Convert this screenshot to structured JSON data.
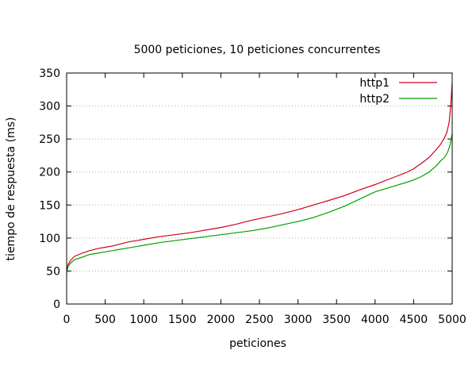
{
  "chart_data": {
    "type": "line",
    "title": "5000 peticiones, 10 peticiones concurrentes",
    "xlabel": "peticiones",
    "ylabel": "tiempo de respuesta (ms)",
    "xlim": [
      0,
      5000
    ],
    "ylim": [
      0,
      350
    ],
    "xticks": [
      0,
      500,
      1000,
      1500,
      2000,
      2500,
      3000,
      3500,
      4000,
      4500,
      5000
    ],
    "yticks": [
      0,
      50,
      100,
      150,
      200,
      250,
      300,
      350
    ],
    "grid": "horizontal-dotted",
    "legend_position": "top-right",
    "series": [
      {
        "name": "http1",
        "color": "#d0001a",
        "x": [
          0,
          20,
          50,
          100,
          200,
          300,
          400,
          500,
          600,
          700,
          800,
          900,
          1000,
          1200,
          1400,
          1600,
          1800,
          2000,
          2200,
          2400,
          2600,
          2800,
          3000,
          3200,
          3400,
          3600,
          3800,
          4000,
          4200,
          4400,
          4500,
          4600,
          4700,
          4800,
          4850,
          4900,
          4930,
          4960,
          4980,
          5000
        ],
        "values": [
          51,
          60,
          66,
          72,
          77,
          81,
          84,
          86,
          88,
          91,
          94,
          96,
          98,
          102,
          105,
          108,
          112,
          116,
          121,
          127,
          132,
          137,
          143,
          150,
          157,
          164,
          173,
          181,
          190,
          199,
          205,
          213,
          222,
          235,
          242,
          252,
          260,
          275,
          300,
          335
        ]
      },
      {
        "name": "http2",
        "color": "#00a000",
        "x": [
          0,
          20,
          50,
          100,
          200,
          300,
          400,
          500,
          600,
          700,
          800,
          900,
          1000,
          1200,
          1400,
          1600,
          1800,
          2000,
          2200,
          2400,
          2600,
          2800,
          3000,
          3200,
          3400,
          3600,
          3800,
          4000,
          4200,
          4400,
          4500,
          4600,
          4700,
          4800,
          4850,
          4900,
          4940,
          4970,
          4990,
          5000
        ],
        "values": [
          47,
          57,
          62,
          67,
          71,
          75,
          77,
          79,
          81,
          83,
          85,
          87,
          89,
          93,
          96,
          99,
          102,
          105,
          108,
          111,
          115,
          120,
          125,
          131,
          139,
          148,
          159,
          170,
          177,
          184,
          188,
          193,
          200,
          210,
          217,
          222,
          230,
          240,
          252,
          258
        ]
      }
    ]
  }
}
